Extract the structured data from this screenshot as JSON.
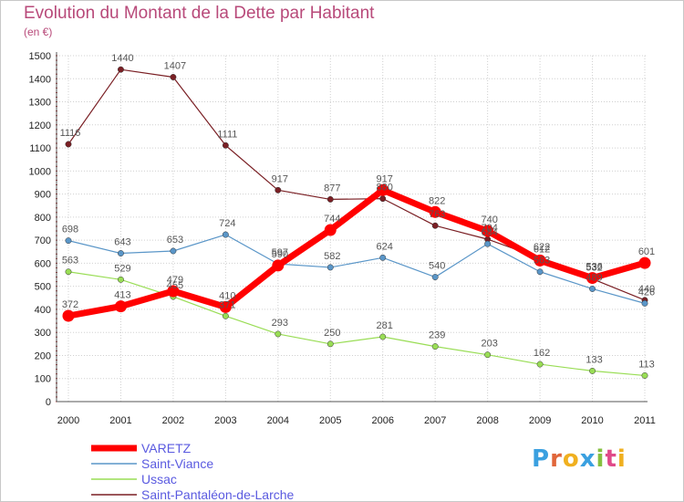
{
  "title": "Evolution du Montant de la Dette par Habitant",
  "unit": "(en €)",
  "logo": {
    "text": "Proxiti",
    "colors": [
      "#3aa0e0",
      "#e0663a",
      "#f0b020",
      "#3aa0e0",
      "#86c040",
      "#e04a8a",
      "#f0b020"
    ]
  },
  "chart_data": {
    "type": "line",
    "x": [
      "2000",
      "2001",
      "2002",
      "2003",
      "2004",
      "2005",
      "2006",
      "2007",
      "2008",
      "2009",
      "2010",
      "2011"
    ],
    "ylim": [
      0,
      1500
    ],
    "yticks": [
      0,
      100,
      200,
      300,
      400,
      500,
      600,
      700,
      800,
      900,
      1000,
      1100,
      1200,
      1300,
      1400,
      1500
    ],
    "grid": true,
    "legend_position": "bottom-left",
    "series": [
      {
        "name": "Saint-Pantaléon-de-Larche",
        "color": "#7a1f24",
        "values": [
          1116,
          1440,
          1407,
          1111,
          917,
          877,
          880,
          763,
          704,
          622,
          532,
          440
        ]
      },
      {
        "name": "Ussac",
        "color": "#99dd55",
        "values": [
          563,
          529,
          455,
          371,
          293,
          250,
          281,
          239,
          203,
          162,
          133,
          113
        ]
      },
      {
        "name": "Saint-Viance",
        "color": "#5a96c8",
        "values": [
          698,
          643,
          653,
          724,
          597,
          582,
          624,
          540,
          684,
          563,
          489,
          426
        ]
      },
      {
        "name": "VARETZ",
        "color": "#ff0000",
        "values": [
          372,
          413,
          479,
          410,
          590,
          744,
          917,
          822,
          740,
          612,
          536,
          601
        ]
      }
    ]
  }
}
